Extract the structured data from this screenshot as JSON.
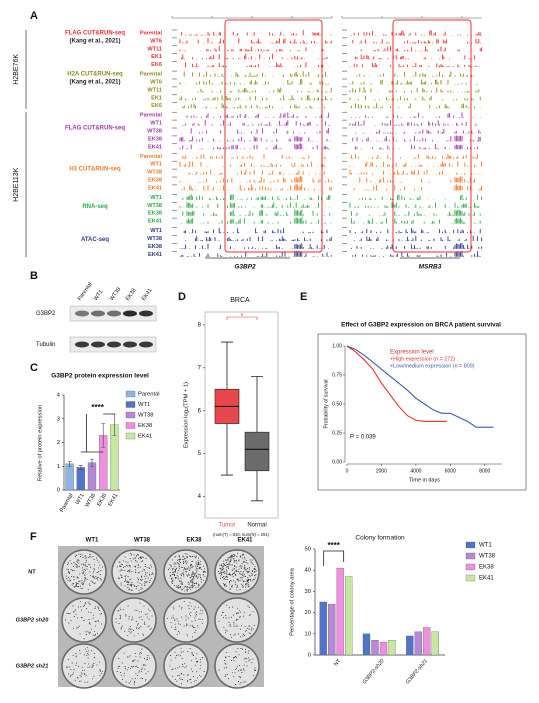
{
  "panel_a": {
    "label": "A",
    "modifications": [
      "H2BE76K",
      "H2BE113K"
    ],
    "groups": [
      {
        "title": "FLAG CUT&RUN-seq",
        "citation": "(Kang et al., 2021)",
        "color": "#e8312f",
        "samples": [
          "Parental",
          "WT6",
          "WT11",
          "EK1",
          "EK6"
        ]
      },
      {
        "title": "H2A CUT&RUN-seq",
        "citation": "(Kang et al., 2021)",
        "color": "#8c8c1e",
        "samples": [
          "Parental",
          "WT6",
          "WT11",
          "EK1",
          "EK6"
        ]
      },
      {
        "title": "FLAG CUT&RUN-seq",
        "color": "#a23aa8",
        "samples": [
          "Parental",
          "WT1",
          "WT38",
          "EK38",
          "EK41"
        ]
      },
      {
        "title": "H3 CUT&RUN-seq",
        "color": "#f07a2a",
        "samples": [
          "Parental",
          "WT1",
          "WT38",
          "EK38",
          "EK41"
        ]
      },
      {
        "title": "RNA-seq",
        "color": "#2fa84a",
        "samples": [
          "WT1",
          "WT38",
          "EK38",
          "EK41"
        ]
      },
      {
        "title": "ATAC-seq",
        "color": "#2b3a8c",
        "samples": [
          "WT1",
          "WT38",
          "EK38",
          "EK41"
        ]
      }
    ],
    "genes": [
      "G3BP2",
      "MSRB3"
    ]
  },
  "panel_b": {
    "label": "B",
    "lanes": [
      "Parental",
      "WT1",
      "WT38",
      "EK38",
      "EK41"
    ],
    "rows": [
      "G3BP2",
      "Tubulin"
    ]
  },
  "panel_f_plate": {
    "columns": [
      "WT1",
      "WT38",
      "EK38",
      "EK41"
    ],
    "rows": [
      "NT",
      "G3BP2 sh20",
      "G3BP2 sh21"
    ]
  },
  "chart_data": [
    {
      "type": "bar",
      "label": "C",
      "title": "G3BP2 protein expression level",
      "y_label": "Relative of protein expression",
      "categories": [
        "Parental",
        "WT1",
        "WT38",
        "EK38",
        "EK41"
      ],
      "values": [
        1.1,
        0.95,
        1.15,
        2.3,
        2.75
      ],
      "errors": [
        0.1,
        0.08,
        0.15,
        0.5,
        0.45
      ],
      "colors": [
        "#8db4e2",
        "#4f74c9",
        "#b48ad8",
        "#f08ee0",
        "#c8e8a0"
      ],
      "ylim": [
        0,
        4
      ],
      "yticks": [
        0,
        1,
        2,
        3,
        4
      ],
      "annotation": "****"
    },
    {
      "type": "box",
      "label": "D",
      "title": "BRCA",
      "y_label": "Expression log₂(TPM + 1)",
      "categories": [
        "Tumor",
        "Normal"
      ],
      "colors": [
        "#e8484d",
        "#6b6b6b"
      ],
      "boxes": [
        {
          "whisker_low": 4.5,
          "q1": 5.7,
          "median": 6.1,
          "q3": 6.5,
          "whisker_high": 7.6
        },
        {
          "whisker_low": 3.9,
          "q1": 4.6,
          "median": 5.1,
          "q3": 5.5,
          "whisker_high": 6.8
        }
      ],
      "ylim": [
        3.5,
        8.3
      ],
      "yticks": [
        4,
        5,
        6,
        7,
        8
      ],
      "annotation": "*",
      "footnote": "(num(T) = 810; num(N) = 291)"
    },
    {
      "type": "line",
      "label": "E",
      "title": "Effect of G3BP2 expression on BRCA patient survival",
      "x_label": "Time in days",
      "y_label": "Probability of survival",
      "legend_title": "Expression level",
      "series": [
        {
          "name": "+High expression (n = 272)",
          "color": "#e8312f",
          "x": [
            0,
            500,
            1000,
            1500,
            2000,
            2500,
            3000,
            3500,
            4000,
            4500,
            5800
          ],
          "values": [
            1,
            0.95,
            0.88,
            0.8,
            0.68,
            0.58,
            0.48,
            0.4,
            0.36,
            0.35,
            0.35
          ]
        },
        {
          "name": "+Low/medium expression (n = 809)",
          "color": "#3a5ea8",
          "x": [
            0,
            500,
            1000,
            1500,
            2000,
            2500,
            3000,
            3500,
            4000,
            4500,
            5000,
            5500,
            6000,
            7000,
            7500,
            8500
          ],
          "values": [
            1,
            0.97,
            0.92,
            0.86,
            0.8,
            0.74,
            0.68,
            0.62,
            0.55,
            0.5,
            0.45,
            0.42,
            0.42,
            0.35,
            0.3,
            0.3
          ]
        }
      ],
      "xlim": [
        0,
        9000
      ],
      "xticks": [
        0,
        2000,
        4000,
        6000,
        8000
      ],
      "ylim": [
        0,
        1
      ],
      "yticks": [
        {
          "value": 0,
          "label": "0.00"
        },
        {
          "value": 0.25,
          "label": "0.25"
        },
        {
          "value": 0.5,
          "label": "0.50"
        },
        {
          "value": 0.75,
          "label": "0.75"
        },
        {
          "value": 1,
          "label": "1.00"
        }
      ],
      "annotation": "P = 0.039"
    },
    {
      "type": "grouped_bar",
      "label": "F",
      "title": "Colony formation",
      "y_label": "Percentage of colony area",
      "categories": [
        "NT",
        "G3BP2-sh20",
        "G3BP2-sh21"
      ],
      "series": [
        {
          "name": "WT1",
          "color": "#4f74c9",
          "values": [
            25,
            10,
            9
          ]
        },
        {
          "name": "WT38",
          "color": "#b48ad8",
          "values": [
            24,
            7,
            11
          ]
        },
        {
          "name": "EK38",
          "color": "#f08ee0",
          "values": [
            41,
            6,
            13
          ]
        },
        {
          "name": "EK41",
          "color": "#c8e8a0",
          "values": [
            37,
            7,
            11
          ]
        }
      ],
      "ylim": [
        0,
        50
      ],
      "yticks": [
        0,
        10,
        20,
        30,
        40,
        50
      ],
      "annotation": "****"
    }
  ]
}
